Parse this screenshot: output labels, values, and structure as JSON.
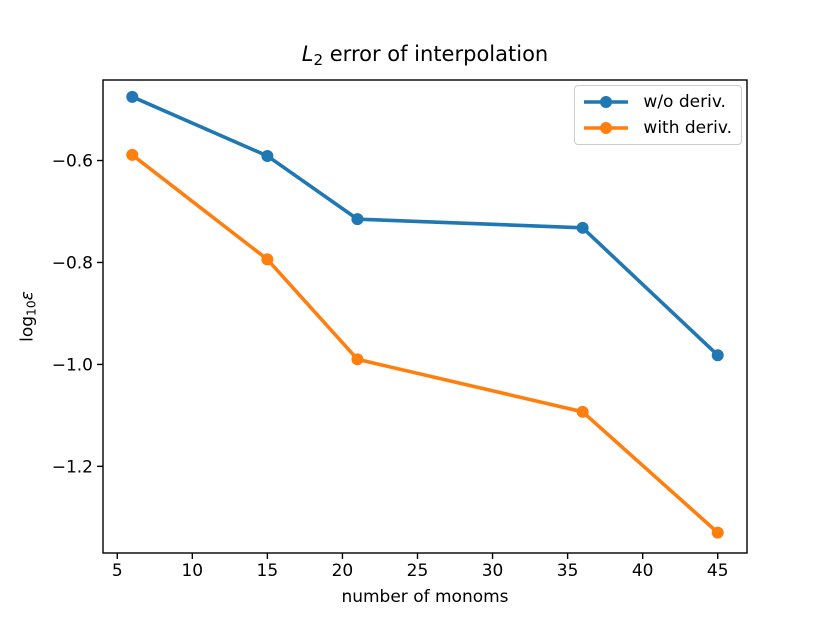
{
  "chart_data": {
    "type": "line",
    "title": "L2 error of interpolation",
    "title_parts": {
      "var": "L",
      "sub": "2",
      "rest": " error of interpolation"
    },
    "xlabel": "number of monoms",
    "ylabel": "log10 epsilon",
    "ylabel_parts": {
      "fn": "log",
      "sub": "10",
      "var": "ε"
    },
    "x": [
      6,
      15,
      21,
      36,
      45
    ],
    "series": [
      {
        "name": "w/o deriv.",
        "color": "#1f77b4",
        "values": [
          -0.475,
          -0.591,
          -0.715,
          -0.732,
          -0.982
        ]
      },
      {
        "name": "with deriv.",
        "color": "#ff7f0e",
        "values": [
          -0.589,
          -0.794,
          -0.99,
          -1.093,
          -1.33
        ]
      }
    ],
    "xlim": [
      4.05,
      46.95
    ],
    "ylim": [
      -1.37,
      -0.442
    ],
    "xticks": [
      5,
      10,
      15,
      20,
      25,
      30,
      35,
      40,
      45
    ],
    "yticks": [
      -0.6,
      -0.8,
      -1.0,
      -1.2
    ],
    "grid": false,
    "legend_position": "upper right",
    "marker": "circle",
    "style": {
      "spine_color": "#000000",
      "tick_color": "#000000",
      "text_color": "#000000",
      "line_width": 3.6,
      "marker_radius": 6,
      "spine_width": 1.4,
      "tick_length": 6
    }
  }
}
